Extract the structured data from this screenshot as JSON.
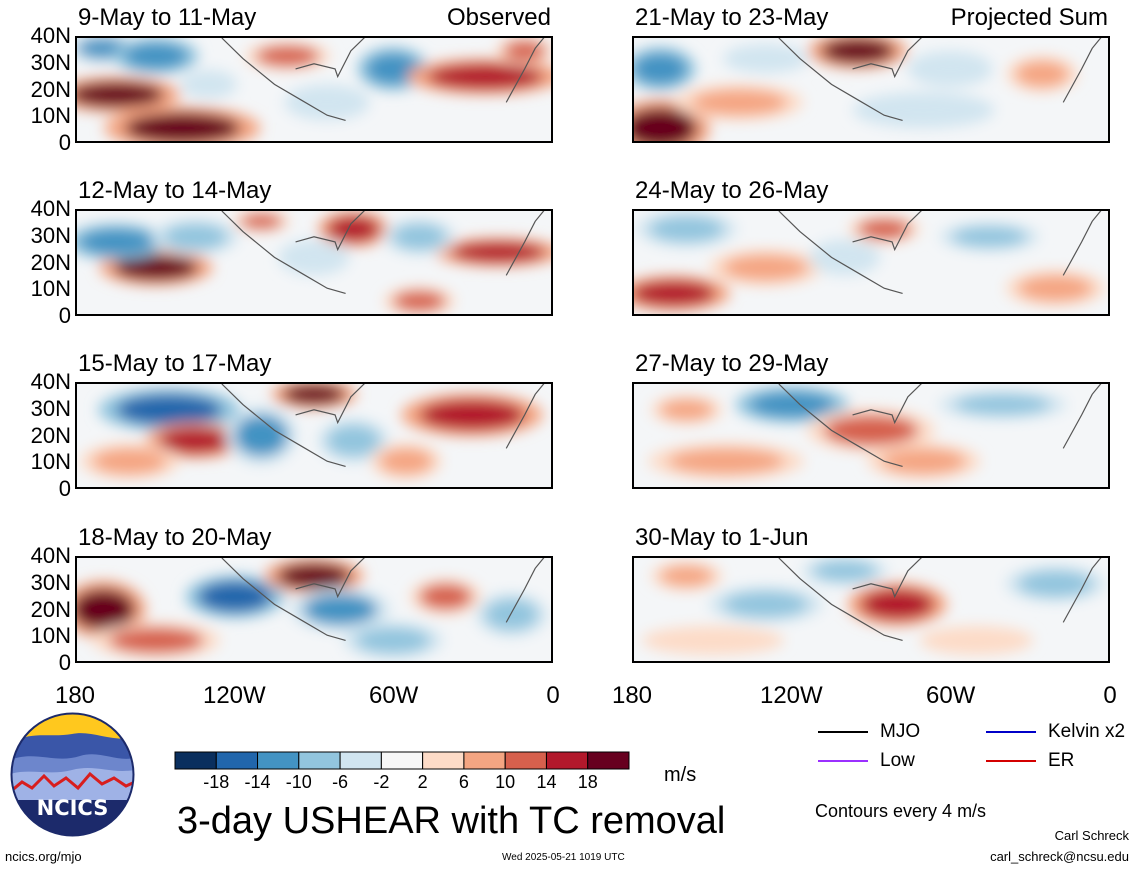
{
  "chart_data": {
    "type": "heatmap",
    "title": "3-day USHEAR with TC removal",
    "units": "m/s",
    "column_titles": [
      "Observed",
      "Projected Sum"
    ],
    "x_ticks": [
      "180",
      "120W",
      "60W",
      "0"
    ],
    "y_ticks": [
      "40N",
      "30N",
      "20N",
      "10N",
      "0"
    ],
    "xlim": [
      -180,
      0
    ],
    "ylim": [
      0,
      40
    ],
    "colorbar": {
      "levels": [
        "-18",
        "-14",
        "-10",
        "-6",
        "-2",
        "2",
        "6",
        "10",
        "14",
        "18"
      ],
      "colors": [
        "#0a2f5e",
        "#2166ac",
        "#4393c3",
        "#92c5de",
        "#d1e5f0",
        "#f7f7f7",
        "#fddbc7",
        "#f4a582",
        "#d6604d",
        "#b2182b",
        "#67001f"
      ]
    },
    "panels": [
      {
        "period": "9-May to 11-May",
        "column": "Observed",
        "blobs": [
          {
            "x": -165,
            "y": 18,
            "rx": 18,
            "ry": 5,
            "v": 18
          },
          {
            "x": -140,
            "y": 5,
            "rx": 22,
            "ry": 6,
            "v": 20
          },
          {
            "x": -170,
            "y": 36,
            "rx": 10,
            "ry": 4,
            "v": -12
          },
          {
            "x": -150,
            "y": 33,
            "rx": 12,
            "ry": 5,
            "v": -14
          },
          {
            "x": -100,
            "y": 33,
            "rx": 12,
            "ry": 4,
            "v": 12
          },
          {
            "x": -60,
            "y": 28,
            "rx": 10,
            "ry": 6,
            "v": -14
          },
          {
            "x": -25,
            "y": 25,
            "rx": 22,
            "ry": 5,
            "v": 16
          },
          {
            "x": -130,
            "y": 22,
            "rx": 8,
            "ry": 4,
            "v": -6
          },
          {
            "x": -85,
            "y": 15,
            "rx": 12,
            "ry": 5,
            "v": -6
          },
          {
            "x": -10,
            "y": 35,
            "rx": 8,
            "ry": 4,
            "v": 10
          }
        ]
      },
      {
        "period": "12-May to 14-May",
        "column": "Observed",
        "blobs": [
          {
            "x": -150,
            "y": 18,
            "rx": 16,
            "ry": 5,
            "v": 20
          },
          {
            "x": -165,
            "y": 28,
            "rx": 14,
            "ry": 5,
            "v": -14
          },
          {
            "x": -135,
            "y": 30,
            "rx": 12,
            "ry": 5,
            "v": -10
          },
          {
            "x": -75,
            "y": 33,
            "rx": 10,
            "ry": 5,
            "v": 16
          },
          {
            "x": -20,
            "y": 24,
            "rx": 18,
            "ry": 4,
            "v": 16
          },
          {
            "x": -110,
            "y": 36,
            "rx": 8,
            "ry": 3,
            "v": 12
          },
          {
            "x": -50,
            "y": 30,
            "rx": 10,
            "ry": 5,
            "v": -10
          },
          {
            "x": -90,
            "y": 22,
            "rx": 10,
            "ry": 5,
            "v": -6
          },
          {
            "x": -50,
            "y": 5,
            "rx": 10,
            "ry": 4,
            "v": 10
          }
        ]
      },
      {
        "period": "15-May to 17-May",
        "column": "Observed",
        "blobs": [
          {
            "x": -145,
            "y": 30,
            "rx": 20,
            "ry": 6,
            "v": -16
          },
          {
            "x": -135,
            "y": 18,
            "rx": 14,
            "ry": 5,
            "v": 16
          },
          {
            "x": -90,
            "y": 36,
            "rx": 12,
            "ry": 4,
            "v": 18
          },
          {
            "x": -30,
            "y": 28,
            "rx": 20,
            "ry": 6,
            "v": 14
          },
          {
            "x": -110,
            "y": 20,
            "rx": 10,
            "ry": 8,
            "v": -12
          },
          {
            "x": -75,
            "y": 18,
            "rx": 10,
            "ry": 6,
            "v": -8
          },
          {
            "x": -160,
            "y": 10,
            "rx": 14,
            "ry": 5,
            "v": 8
          },
          {
            "x": -55,
            "y": 10,
            "rx": 10,
            "ry": 5,
            "v": 6
          }
        ]
      },
      {
        "period": "18-May to 20-May",
        "column": "Observed",
        "blobs": [
          {
            "x": -170,
            "y": 20,
            "rx": 12,
            "ry": 8,
            "v": 18
          },
          {
            "x": -120,
            "y": 25,
            "rx": 14,
            "ry": 6,
            "v": -16
          },
          {
            "x": -90,
            "y": 33,
            "rx": 14,
            "ry": 5,
            "v": 18
          },
          {
            "x": -80,
            "y": 20,
            "rx": 14,
            "ry": 6,
            "v": -12
          },
          {
            "x": -40,
            "y": 25,
            "rx": 10,
            "ry": 5,
            "v": 12
          },
          {
            "x": -150,
            "y": 8,
            "rx": 18,
            "ry": 5,
            "v": 10
          },
          {
            "x": -60,
            "y": 8,
            "rx": 14,
            "ry": 5,
            "v": -8
          },
          {
            "x": -15,
            "y": 18,
            "rx": 10,
            "ry": 6,
            "v": -8
          }
        ]
      },
      {
        "period": "21-May to 23-May",
        "column": "Projected Sum",
        "blobs": [
          {
            "x": -170,
            "y": 5,
            "rx": 14,
            "ry": 8,
            "v": 18
          },
          {
            "x": -170,
            "y": 28,
            "rx": 10,
            "ry": 6,
            "v": -14
          },
          {
            "x": -95,
            "y": 35,
            "rx": 14,
            "ry": 5,
            "v": 18
          },
          {
            "x": -140,
            "y": 15,
            "rx": 18,
            "ry": 5,
            "v": 8
          },
          {
            "x": -60,
            "y": 28,
            "rx": 12,
            "ry": 5,
            "v": -6
          },
          {
            "x": -25,
            "y": 26,
            "rx": 10,
            "ry": 5,
            "v": 8
          },
          {
            "x": -70,
            "y": 12,
            "rx": 20,
            "ry": 5,
            "v": -6
          },
          {
            "x": -130,
            "y": 32,
            "rx": 12,
            "ry": 4,
            "v": -6
          }
        ]
      },
      {
        "period": "24-May to 26-May",
        "column": "Projected Sum",
        "blobs": [
          {
            "x": -165,
            "y": 8,
            "rx": 16,
            "ry": 5,
            "v": 14
          },
          {
            "x": -160,
            "y": 33,
            "rx": 14,
            "ry": 5,
            "v": -8
          },
          {
            "x": -130,
            "y": 18,
            "rx": 16,
            "ry": 5,
            "v": 8
          },
          {
            "x": -85,
            "y": 33,
            "rx": 10,
            "ry": 4,
            "v": 12
          },
          {
            "x": -45,
            "y": 30,
            "rx": 14,
            "ry": 4,
            "v": -10
          },
          {
            "x": -20,
            "y": 10,
            "rx": 14,
            "ry": 5,
            "v": 6
          },
          {
            "x": -100,
            "y": 22,
            "rx": 10,
            "ry": 5,
            "v": -6
          }
        ]
      },
      {
        "period": "27-May to 29-May",
        "column": "Projected Sum",
        "blobs": [
          {
            "x": -120,
            "y": 32,
            "rx": 16,
            "ry": 5,
            "v": -14
          },
          {
            "x": -90,
            "y": 22,
            "rx": 18,
            "ry": 6,
            "v": 12
          },
          {
            "x": -145,
            "y": 10,
            "rx": 22,
            "ry": 5,
            "v": 8
          },
          {
            "x": -40,
            "y": 32,
            "rx": 18,
            "ry": 4,
            "v": -8
          },
          {
            "x": -70,
            "y": 10,
            "rx": 16,
            "ry": 5,
            "v": 8
          },
          {
            "x": -160,
            "y": 30,
            "rx": 10,
            "ry": 4,
            "v": 6
          }
        ]
      },
      {
        "period": "30-May to 1-Jun",
        "column": "Projected Sum",
        "blobs": [
          {
            "x": -80,
            "y": 22,
            "rx": 14,
            "ry": 6,
            "v": 16
          },
          {
            "x": -130,
            "y": 22,
            "rx": 16,
            "ry": 5,
            "v": -8
          },
          {
            "x": -100,
            "y": 35,
            "rx": 12,
            "ry": 4,
            "v": -8
          },
          {
            "x": -20,
            "y": 30,
            "rx": 14,
            "ry": 5,
            "v": -10
          },
          {
            "x": -160,
            "y": 33,
            "rx": 10,
            "ry": 4,
            "v": 6
          },
          {
            "x": -150,
            "y": 8,
            "rx": 20,
            "ry": 4,
            "v": 4
          },
          {
            "x": -50,
            "y": 8,
            "rx": 16,
            "ry": 4,
            "v": 4
          }
        ]
      }
    ],
    "legend": [
      {
        "name": "MJO",
        "color": "#000000"
      },
      {
        "name": "Kelvin x2",
        "color": "#0000c8"
      },
      {
        "name": "Low",
        "color": "#9b30ff"
      },
      {
        "name": "ER",
        "color": "#d40000"
      }
    ],
    "contour_note": "Contours every 4 m/s"
  },
  "footer": {
    "logo_text": "NCICS",
    "site": "ncics.org/mjo",
    "timestamp": "Wed 2025-05-21 1019 UTC",
    "author": "Carl Schreck",
    "email": "carl_schreck@ncsu.edu"
  }
}
